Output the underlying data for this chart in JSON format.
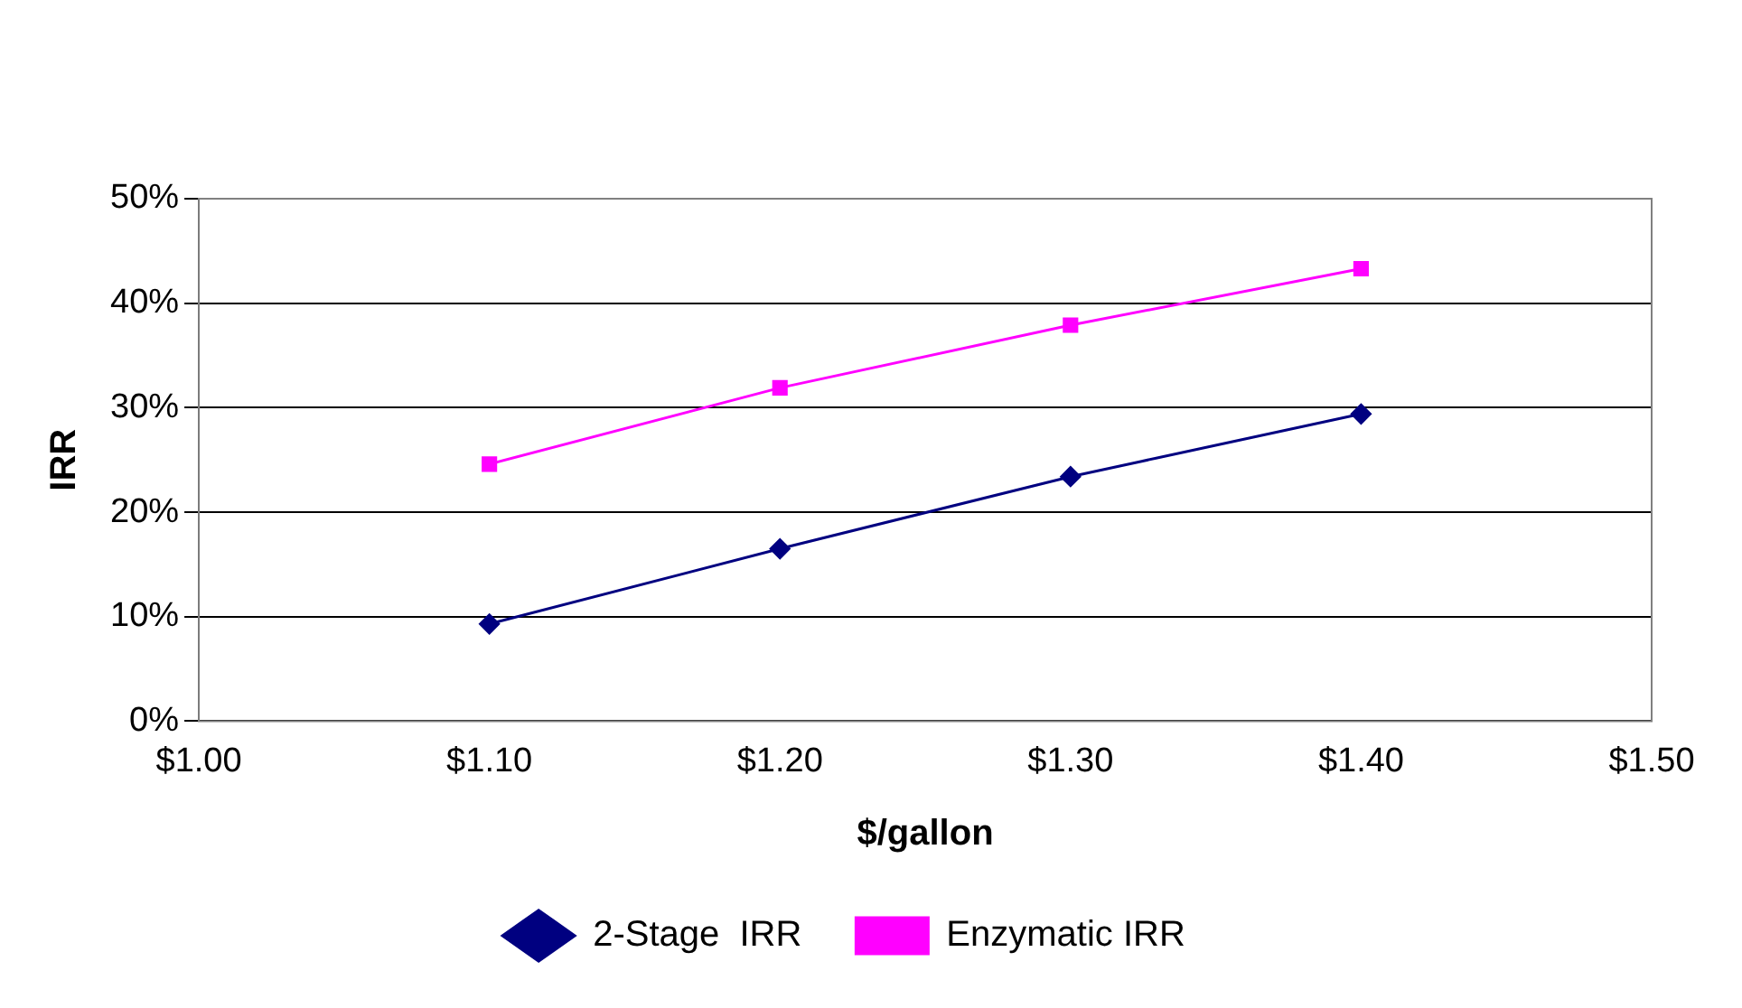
{
  "chart_data": {
    "type": "line",
    "xlabel": "$/gallon",
    "ylabel": "IRR",
    "x": [
      1.1,
      1.2,
      1.3,
      1.4
    ],
    "series": [
      {
        "name": "2-Stage  IRR",
        "color": "#000080",
        "marker": "diamond",
        "values": [
          9.3,
          16.5,
          23.4,
          29.4
        ]
      },
      {
        "name": "Enzymatic IRR",
        "color": "#ff00ff",
        "marker": "square",
        "values": [
          24.6,
          31.9,
          37.9,
          43.3
        ]
      }
    ],
    "xlim": [
      1.0,
      1.5
    ],
    "xticks": [
      {
        "value": 1.0,
        "label": "$1.00"
      },
      {
        "value": 1.1,
        "label": "$1.10"
      },
      {
        "value": 1.2,
        "label": "$1.20"
      },
      {
        "value": 1.3,
        "label": "$1.30"
      },
      {
        "value": 1.4,
        "label": "$1.40"
      },
      {
        "value": 1.5,
        "label": "$1.50"
      }
    ],
    "ylim": [
      0,
      50
    ],
    "yticks": [
      {
        "value": 0,
        "label": "0%"
      },
      {
        "value": 10,
        "label": "10%"
      },
      {
        "value": 20,
        "label": "20%"
      },
      {
        "value": 30,
        "label": "30%"
      },
      {
        "value": 40,
        "label": "40%"
      },
      {
        "value": 50,
        "label": "50%"
      }
    ],
    "grid": "y",
    "legend": "bottom",
    "line_style": "solid"
  }
}
